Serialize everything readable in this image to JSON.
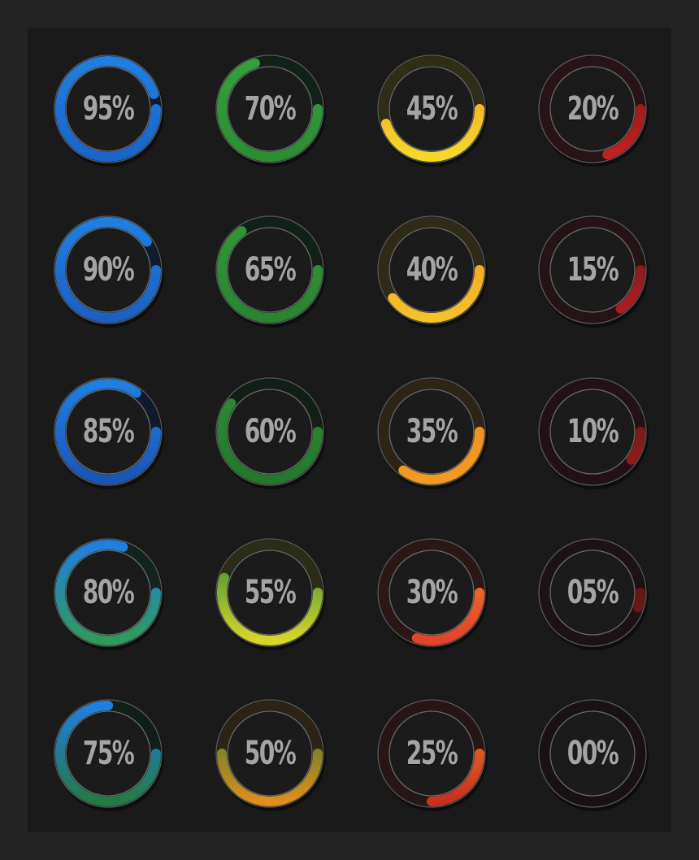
{
  "gauges": [
    {
      "label": "95%",
      "value": 95,
      "colors": [
        "#1f7fe0",
        "#1a64c8"
      ]
    },
    {
      "label": "70%",
      "value": 70,
      "colors": [
        "#35a03c",
        "#2a8e33"
      ]
    },
    {
      "label": "45%",
      "value": 45,
      "colors": [
        "#f19c25",
        "#f5d82a"
      ]
    },
    {
      "label": "20%",
      "value": 20,
      "colors": [
        "#7a1818",
        "#c42121"
      ]
    },
    {
      "label": "90%",
      "value": 90,
      "colors": [
        "#1f7fe0",
        "#1a60c2"
      ]
    },
    {
      "label": "65%",
      "value": 65,
      "colors": [
        "#32973a",
        "#2a8430"
      ]
    },
    {
      "label": "40%",
      "value": 40,
      "colors": [
        "#f09a22",
        "#f5c229"
      ]
    },
    {
      "label": "15%",
      "value": 15,
      "colors": [
        "#6a1717",
        "#b02020"
      ]
    },
    {
      "label": "85%",
      "value": 85,
      "colors": [
        "#1f7fe0",
        "#1a55b8"
      ]
    },
    {
      "label": "60%",
      "value": 60,
      "colors": [
        "#2e8b36",
        "#24772b"
      ]
    },
    {
      "label": "35%",
      "value": 35,
      "colors": [
        "#ef8a20",
        "#f29a22"
      ]
    },
    {
      "label": "10%",
      "value": 10,
      "colors": [
        "#5e1616",
        "#9c1d1d"
      ]
    },
    {
      "label": "80%",
      "value": 80,
      "colors": [
        "#1f7fe0",
        "#2f9a5a"
      ]
    },
    {
      "label": "55%",
      "value": 55,
      "colors": [
        "#2d8a35",
        "#d8d628"
      ]
    },
    {
      "label": "30%",
      "value": 30,
      "colors": [
        "#f18422",
        "#e2432a"
      ]
    },
    {
      "label": "05%",
      "value": 5,
      "colors": [
        "#4e1515",
        "#7a1919"
      ]
    },
    {
      "label": "75%",
      "value": 75,
      "colors": [
        "#1f7fe0",
        "#237a45"
      ]
    },
    {
      "label": "50%",
      "value": 50,
      "colors": [
        "#2a7a32",
        "#e08e1e"
      ]
    },
    {
      "label": "25%",
      "value": 25,
      "colors": [
        "#f07f21",
        "#c9301f"
      ]
    },
    {
      "label": "00%",
      "value": 0,
      "colors": [
        "#3e1414",
        "#5a1616"
      ]
    }
  ]
}
